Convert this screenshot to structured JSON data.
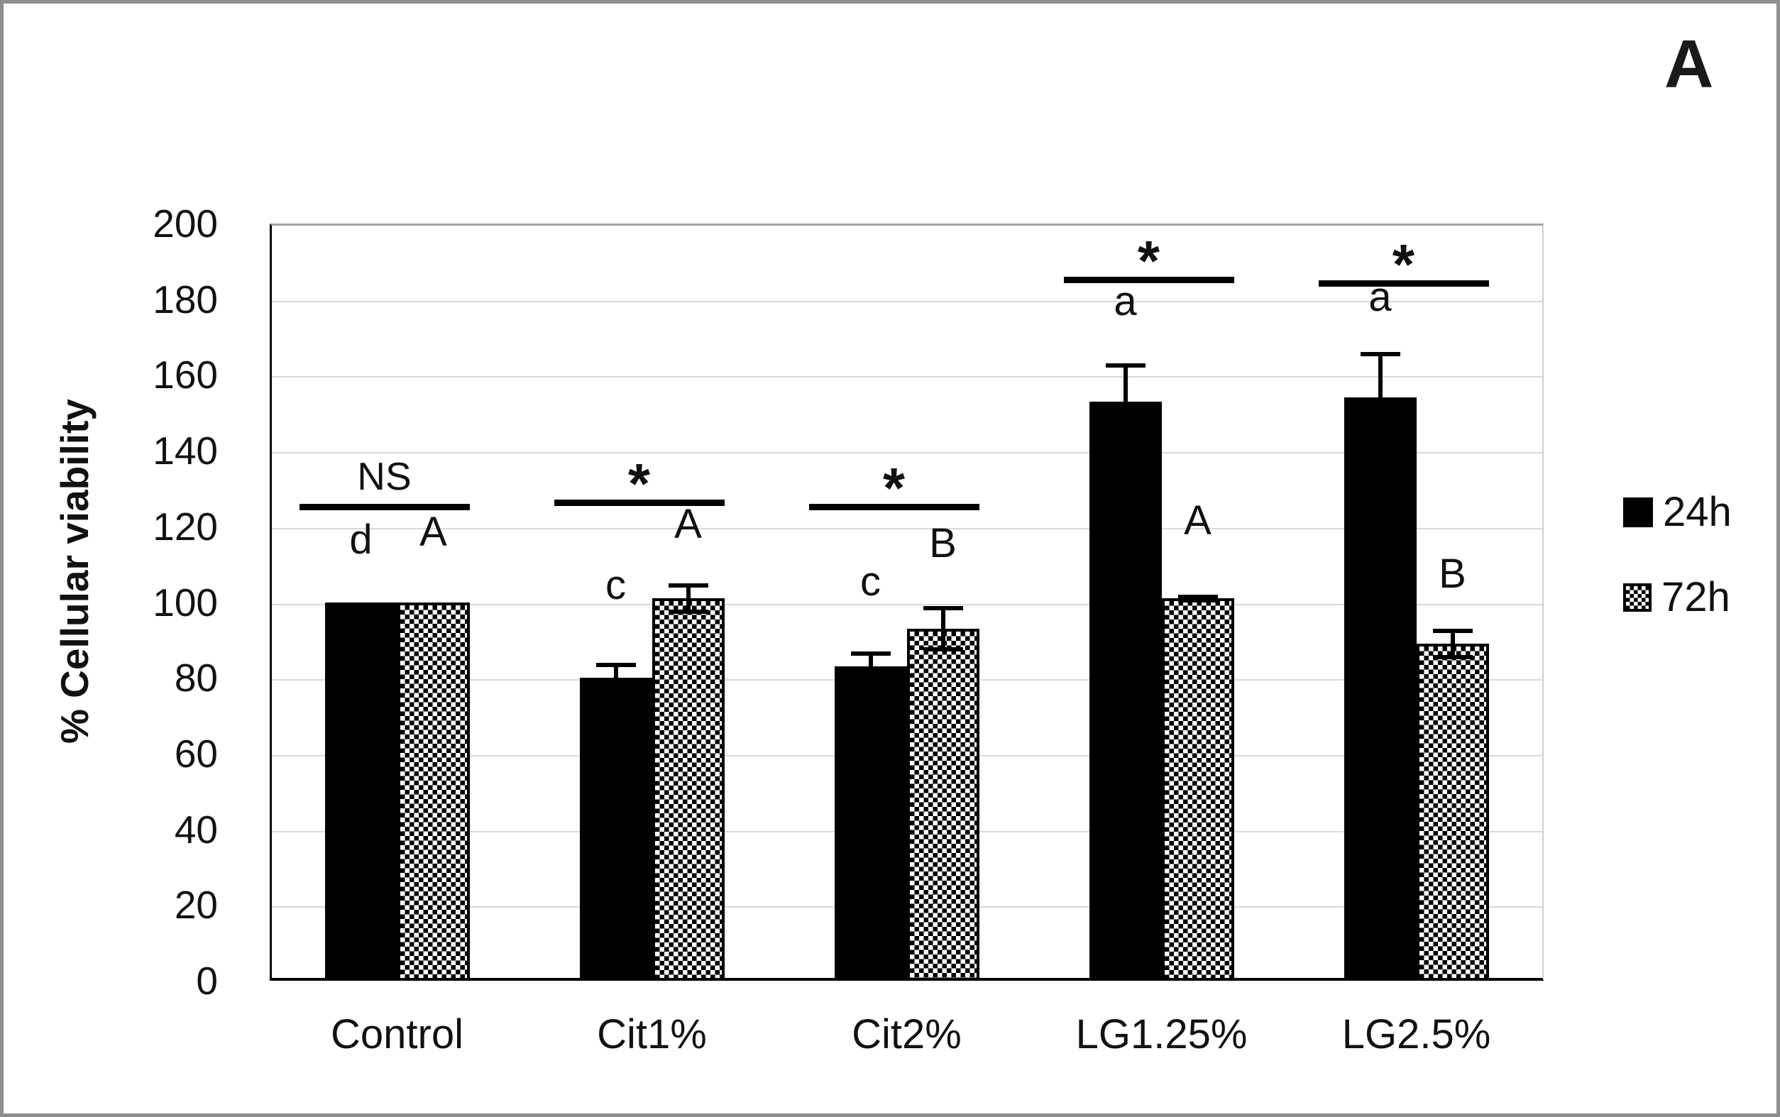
{
  "panel_label": "A",
  "colors": {
    "bar_fill": "#000000",
    "grid": "#d9d9d9",
    "axis": "#000000",
    "plot_frame": "#a3a3a3",
    "page_border": "#8e8e8e",
    "background": "#ffffff"
  },
  "legend": {
    "position": "right",
    "items": [
      {
        "label": "24h",
        "pattern": "solid-black"
      },
      {
        "label": "72h",
        "pattern": "checkered"
      }
    ]
  },
  "chart_data": {
    "type": "bar",
    "title": "",
    "xlabel": "",
    "ylabel": "% Cellular viability",
    "ylim": [
      0,
      200
    ],
    "ytick_step": 20,
    "yticks": [
      0,
      20,
      40,
      60,
      80,
      100,
      120,
      140,
      160,
      180,
      200
    ],
    "grid": true,
    "legend_position": "right",
    "categories": [
      "Control",
      "Cit1%",
      "Cit2%",
      "LG1.25%",
      "LG2.5%"
    ],
    "series": [
      {
        "name": "24h",
        "pattern": "solid-black",
        "values": [
          100,
          80,
          83,
          153,
          154
        ],
        "errors": [
          0,
          4,
          4,
          10,
          12
        ],
        "letters": [
          "d",
          "c",
          "c",
          "a",
          "a"
        ],
        "letter_levels": [
          111,
          99,
          100,
          174,
          175
        ]
      },
      {
        "name": "72h",
        "pattern": "checkered",
        "values": [
          100,
          101,
          93,
          101,
          89
        ],
        "errors": [
          0,
          4,
          6,
          1,
          4
        ],
        "letters": [
          "A",
          "A",
          "B",
          "A",
          "B"
        ],
        "letter_levels": [
          113,
          115,
          110,
          116,
          102
        ]
      }
    ],
    "significance": [
      {
        "group": "Control",
        "label": "NS",
        "line_level": 126
      },
      {
        "group": "Cit1%",
        "label": "*",
        "line_level": 127
      },
      {
        "group": "Cit2%",
        "label": "*",
        "line_level": 126
      },
      {
        "group": "LG1.25%",
        "label": "*",
        "line_level": 186
      },
      {
        "group": "LG2.5%",
        "label": "*",
        "line_level": 185
      }
    ]
  }
}
